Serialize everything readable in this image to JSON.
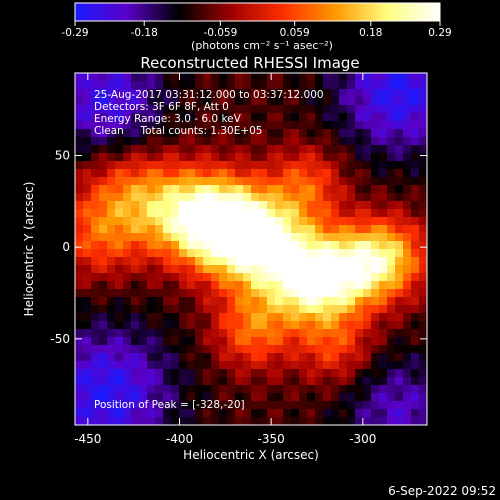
{
  "colorbar": {
    "ticks": [
      "-0.29",
      "-0.18",
      "-0.059",
      "0.059",
      "0.18",
      "0.29"
    ],
    "tick_values": [
      -0.29,
      -0.18,
      -0.059,
      0.059,
      0.18,
      0.29
    ],
    "range": [
      -0.29,
      0.29
    ],
    "unit_label": "(photons cm⁻² s⁻¹ asec⁻²)",
    "colors": [
      "#1a1aff",
      "#5a00c8",
      "#000000",
      "#a00000",
      "#ff3000",
      "#ff9a00",
      "#ffff80",
      "#ffffff"
    ]
  },
  "title": "Reconstructed RHESSI Image",
  "info_lines": [
    "25-Aug-2017 03:31:12.000 to 03:37:12.000",
    "Detectors: 3F 6F 8F, Att 0",
    "Energy Range: 3.0 - 6.0 keV",
    "Clean     Total counts: 1.30E+05"
  ],
  "peak_text": "Position of Peak = [-328,-20]",
  "footer_date": "6-Sep-2022 09:52",
  "chart_data": {
    "type": "heatmap",
    "title": "Reconstructed RHESSI Image",
    "xlabel": "Heliocentric X (arcsec)",
    "ylabel": "Heliocentric Y (arcsec)",
    "xlim": [
      -457,
      -265
    ],
    "ylim": [
      -97,
      95
    ],
    "x_ticks": [
      -450,
      -400,
      -350,
      -300
    ],
    "y_ticks": [
      -50,
      0,
      50
    ],
    "x_tick_labels": [
      "-450",
      "-400",
      "-350",
      "-300"
    ],
    "y_tick_labels": [
      "-50",
      "0",
      "50"
    ],
    "value_range": [
      -0.29,
      0.29
    ],
    "peak_position": [
      -328,
      -20
    ],
    "peak_value": 0.29,
    "blobs": [
      {
        "x": -445,
        "y": 5,
        "amp": 0.13,
        "s": 16
      },
      {
        "x": -430,
        "y": 30,
        "amp": 0.14,
        "s": 18
      },
      {
        "x": -405,
        "y": 20,
        "amp": 0.15,
        "s": 18
      },
      {
        "x": -385,
        "y": 15,
        "amp": 0.21,
        "s": 17
      },
      {
        "x": -370,
        "y": 10,
        "amp": 0.26,
        "s": 18
      },
      {
        "x": -350,
        "y": 0,
        "amp": 0.26,
        "s": 18
      },
      {
        "x": -328,
        "y": -20,
        "amp": 0.28,
        "s": 16
      },
      {
        "x": -305,
        "y": -12,
        "amp": 0.24,
        "s": 16
      },
      {
        "x": -285,
        "y": -5,
        "amp": 0.2,
        "s": 15
      },
      {
        "x": -330,
        "y": 35,
        "amp": 0.14,
        "s": 14
      },
      {
        "x": -360,
        "y": -45,
        "amp": 0.17,
        "s": 15
      },
      {
        "x": -315,
        "y": -55,
        "amp": 0.13,
        "s": 14
      },
      {
        "x": -440,
        "y": 80,
        "amp": -0.16,
        "s": 22
      },
      {
        "x": -280,
        "y": 85,
        "amp": -0.18,
        "s": 24
      },
      {
        "x": -440,
        "y": -80,
        "amp": -0.18,
        "s": 26
      },
      {
        "x": -280,
        "y": -90,
        "amp": -0.12,
        "s": 22
      }
    ]
  }
}
